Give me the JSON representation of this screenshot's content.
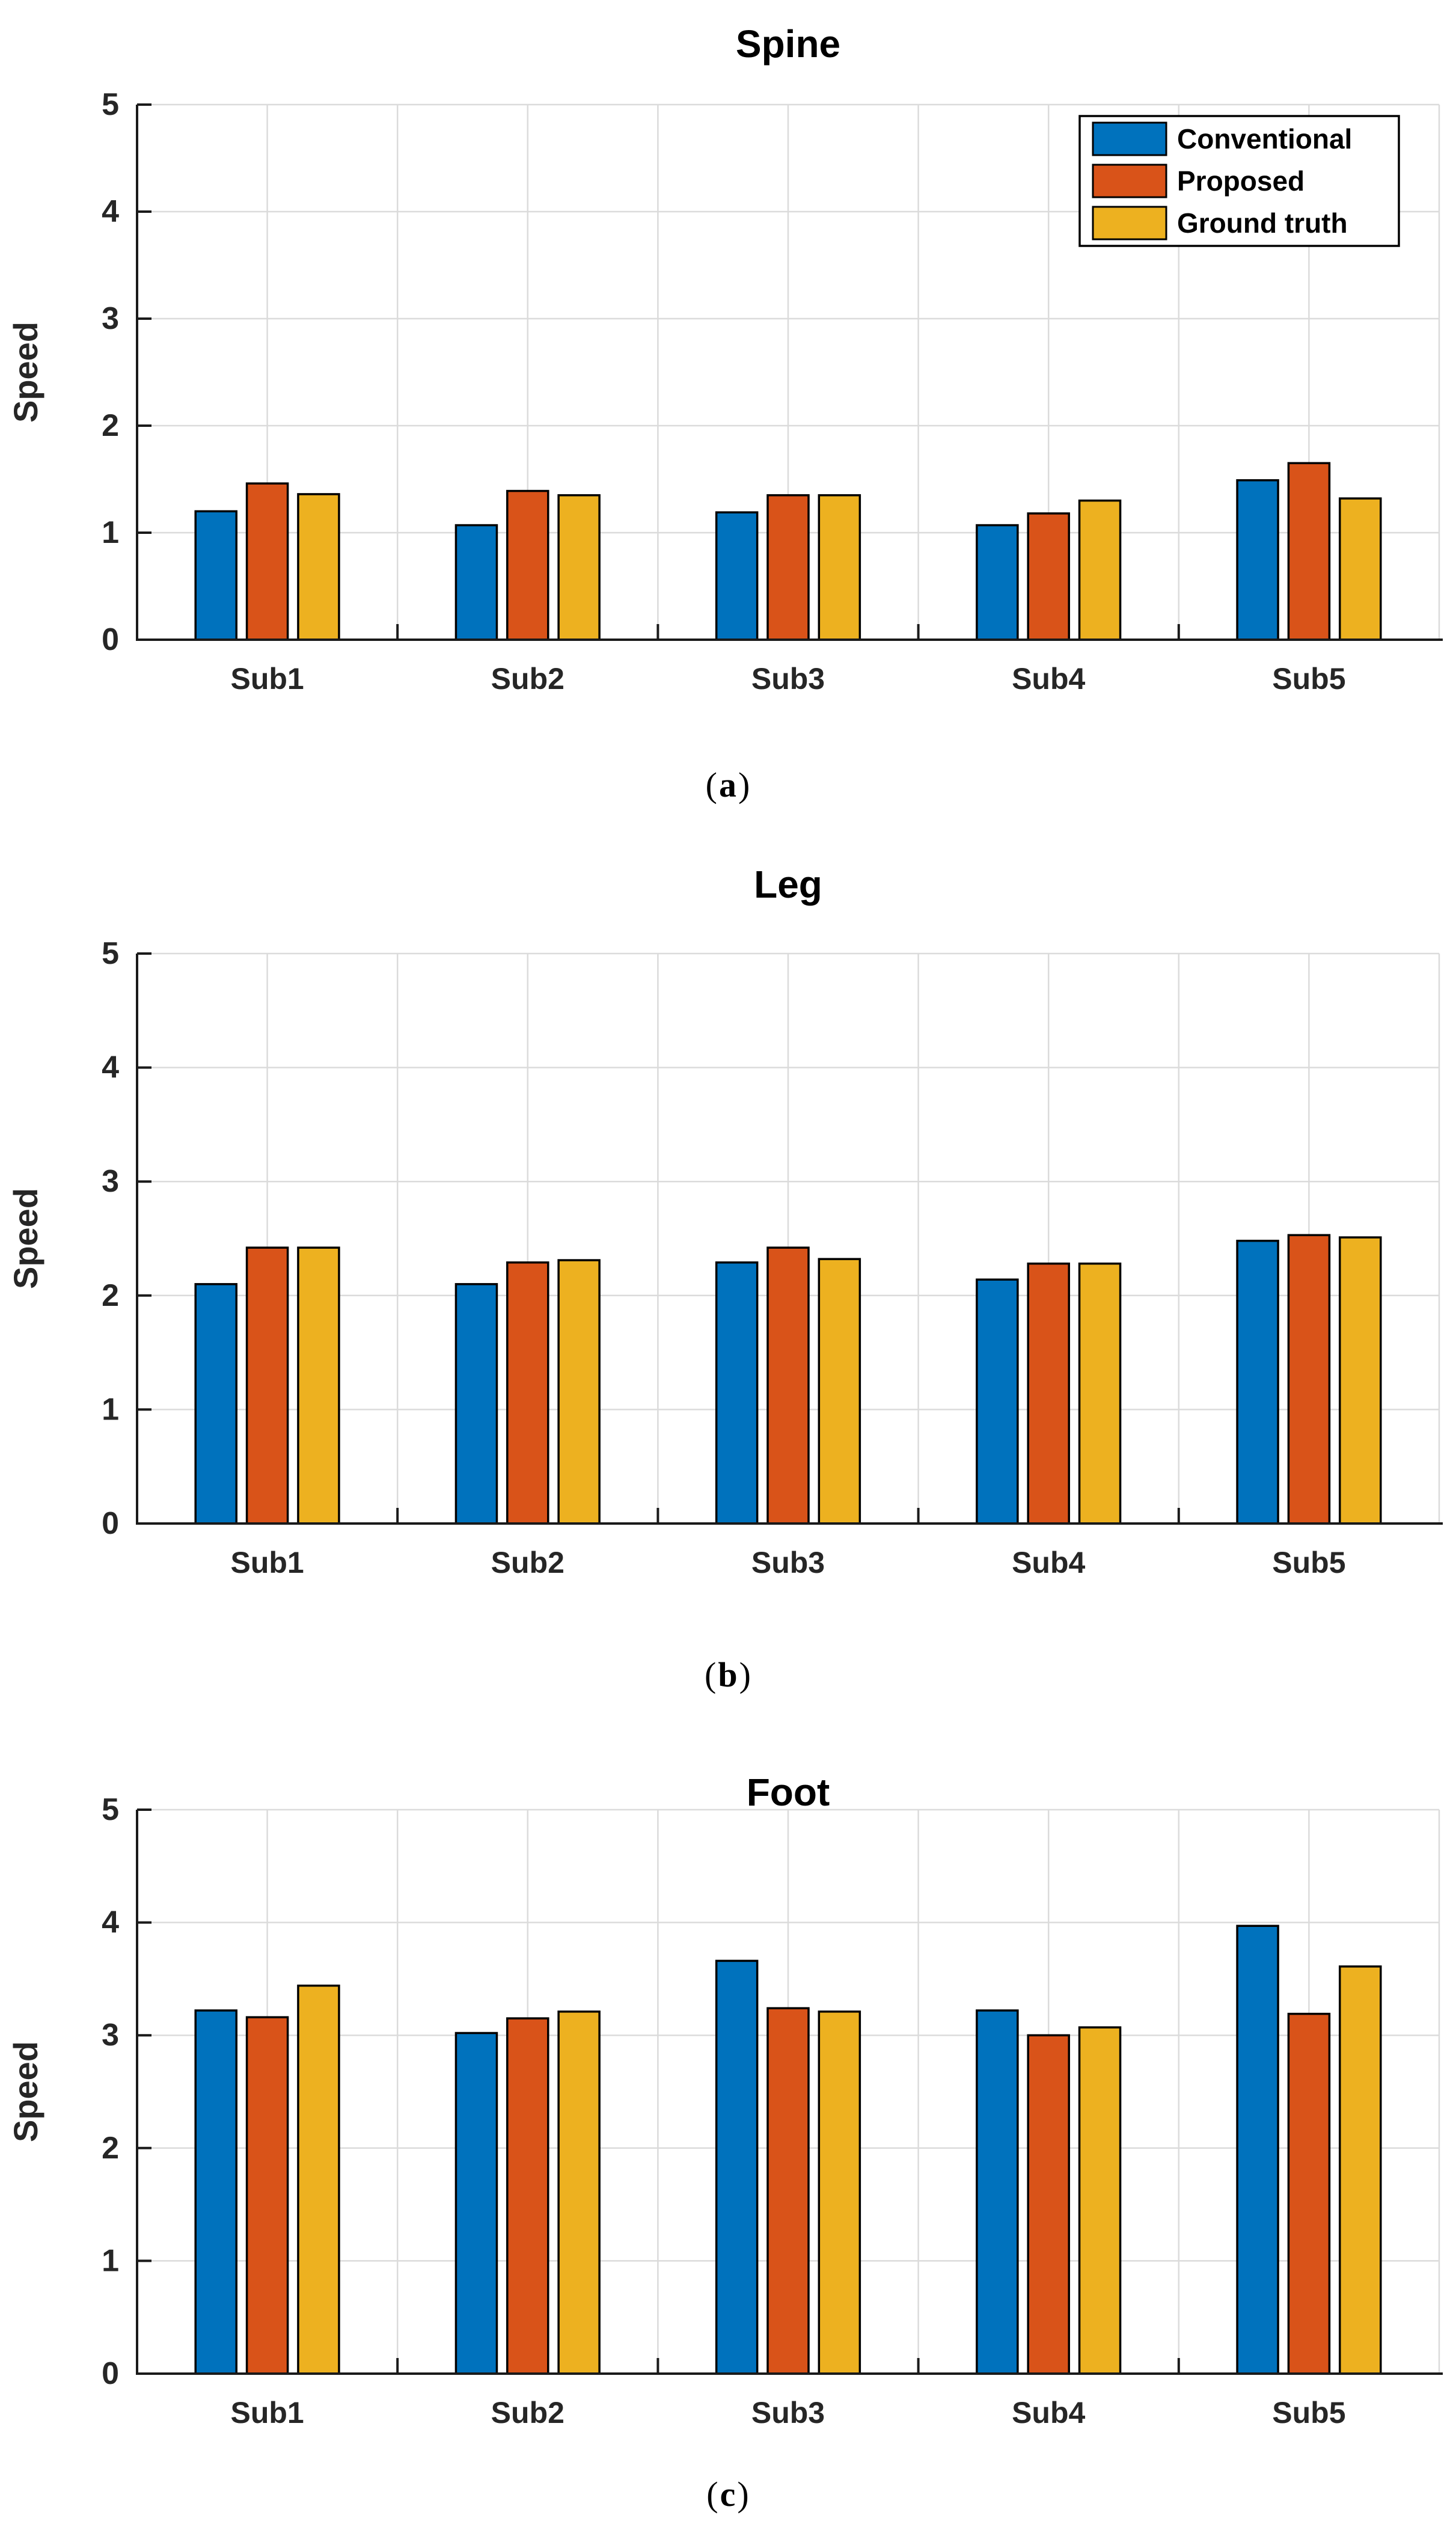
{
  "page": {
    "background": "#ffffff"
  },
  "style": {
    "axis_color": "#1a1a1a",
    "title_color": "#000000",
    "tick_label_color": "#262626",
    "grid_color": "#dbdbdb",
    "bar_edge_color": "#000000",
    "legend_border_color": "#000000",
    "legend_background": "#ffffff",
    "legend_text_color": "#000000"
  },
  "chart_data": [
    {
      "type": "bar",
      "title": "Spine",
      "xlabel": "",
      "ylabel": "Speed",
      "ylim": [
        0,
        5
      ],
      "yticks": [
        0,
        1,
        2,
        3,
        4,
        5
      ],
      "grid": true,
      "legend": {
        "visible": true,
        "position": "top-right",
        "entries": [
          "Conventional",
          "Proposed",
          "Ground truth"
        ]
      },
      "categories": [
        "Sub1",
        "Sub2",
        "Sub3",
        "Sub4",
        "Sub5"
      ],
      "series": [
        {
          "name": "Conventional",
          "color": "#0072BD",
          "values": [
            1.2,
            1.07,
            1.19,
            1.07,
            1.49
          ]
        },
        {
          "name": "Proposed",
          "color": "#D95319",
          "values": [
            1.46,
            1.39,
            1.35,
            1.18,
            1.65
          ]
        },
        {
          "name": "Ground truth",
          "color": "#EDB120",
          "values": [
            1.36,
            1.35,
            1.35,
            1.3,
            1.32
          ]
        }
      ],
      "caption": {
        "open": "(",
        "letter": "a",
        "close": ")"
      }
    },
    {
      "type": "bar",
      "title": "Leg",
      "xlabel": "",
      "ylabel": "Speed",
      "ylim": [
        0,
        5
      ],
      "yticks": [
        0,
        1,
        2,
        3,
        4,
        5
      ],
      "grid": true,
      "legend": {
        "visible": false,
        "position": "top-right",
        "entries": [
          "Conventional",
          "Proposed",
          "Ground truth"
        ]
      },
      "categories": [
        "Sub1",
        "Sub2",
        "Sub3",
        "Sub4",
        "Sub5"
      ],
      "series": [
        {
          "name": "Conventional",
          "color": "#0072BD",
          "values": [
            2.1,
            2.1,
            2.29,
            2.14,
            2.48
          ]
        },
        {
          "name": "Proposed",
          "color": "#D95319",
          "values": [
            2.42,
            2.29,
            2.42,
            2.28,
            2.53
          ]
        },
        {
          "name": "Ground truth",
          "color": "#EDB120",
          "values": [
            2.42,
            2.31,
            2.32,
            2.28,
            2.51
          ]
        }
      ],
      "caption": {
        "open": "(",
        "letter": "b",
        "close": ")"
      }
    },
    {
      "type": "bar",
      "title": "Foot",
      "xlabel": "",
      "ylabel": "Speed",
      "ylim": [
        0,
        5
      ],
      "yticks": [
        0,
        1,
        2,
        3,
        4,
        5
      ],
      "grid": true,
      "legend": {
        "visible": false,
        "position": "top-right",
        "entries": [
          "Conventional",
          "Proposed",
          "Ground truth"
        ]
      },
      "categories": [
        "Sub1",
        "Sub2",
        "Sub3",
        "Sub4",
        "Sub5"
      ],
      "series": [
        {
          "name": "Conventional",
          "color": "#0072BD",
          "values": [
            3.22,
            3.02,
            3.66,
            3.22,
            3.97
          ]
        },
        {
          "name": "Proposed",
          "color": "#D95319",
          "values": [
            3.16,
            3.15,
            3.24,
            3.0,
            3.19
          ]
        },
        {
          "name": "Ground truth",
          "color": "#EDB120",
          "values": [
            3.44,
            3.21,
            3.21,
            3.07,
            3.61
          ]
        }
      ],
      "caption": {
        "open": "(",
        "letter": "c",
        "close": ")"
      }
    }
  ]
}
